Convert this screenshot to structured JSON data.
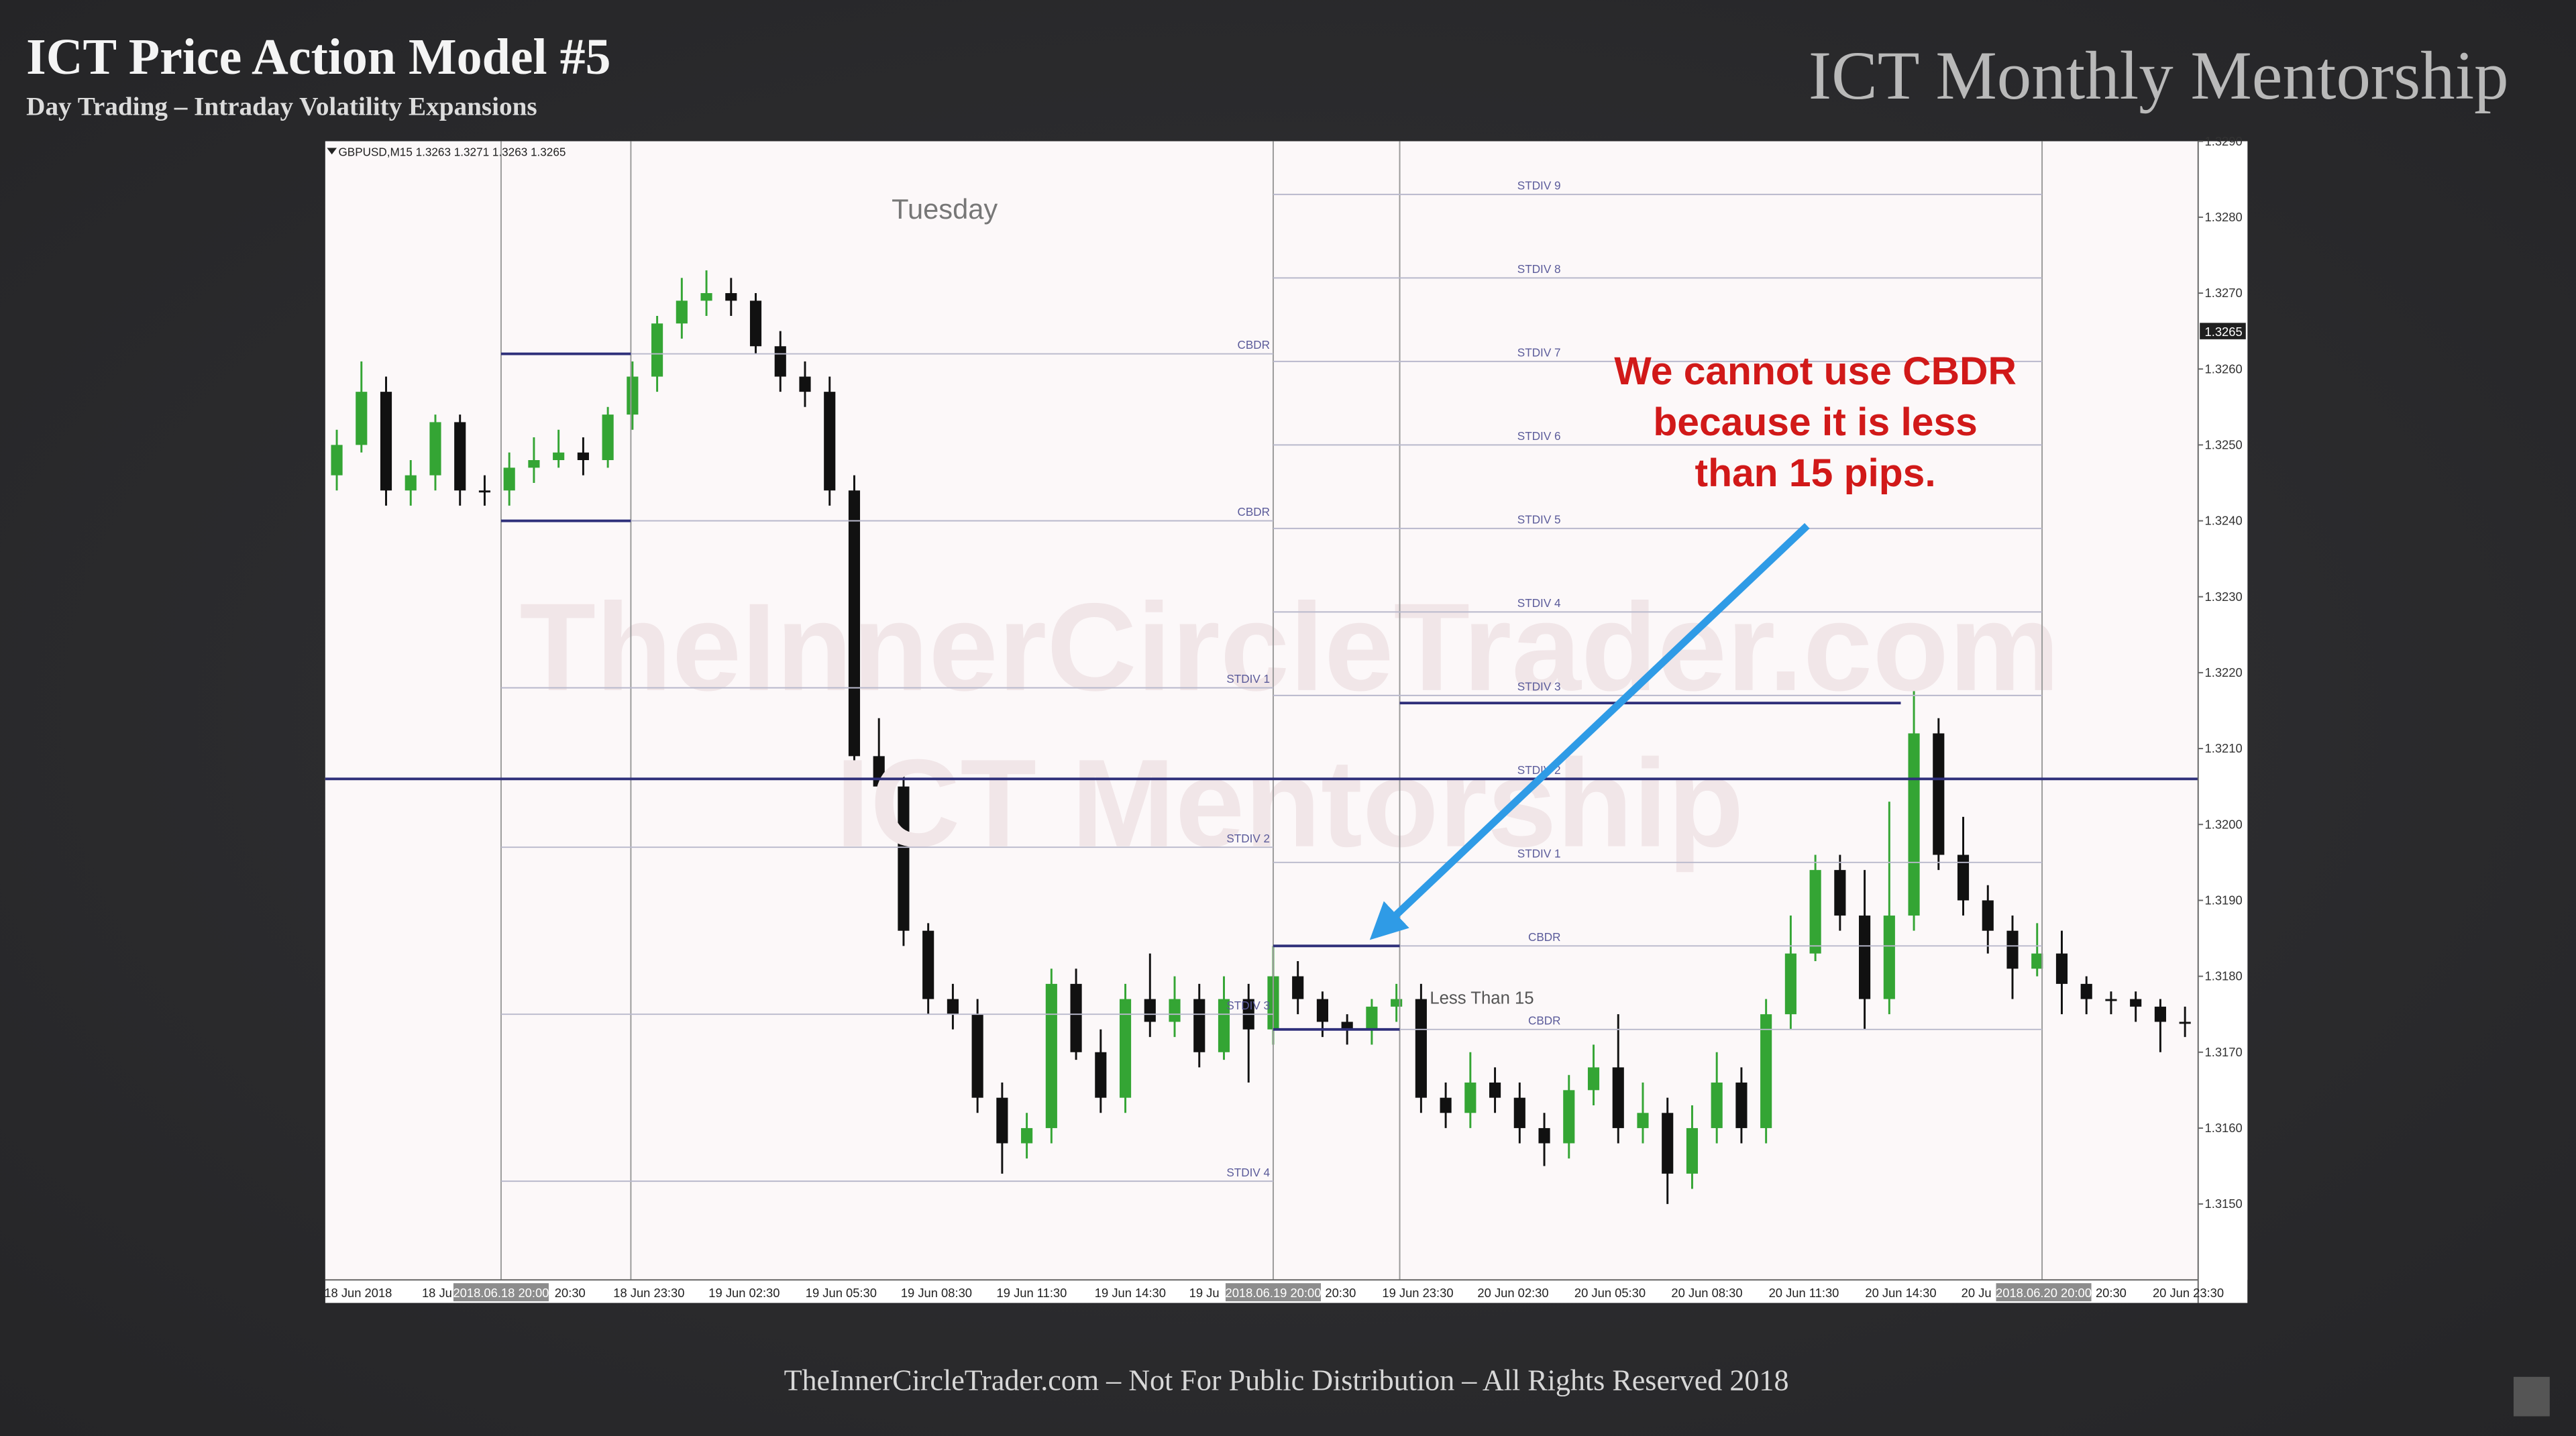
{
  "slide": {
    "title": "ICT Price Action Model #5",
    "subtitle": "Day Trading – Intraday Volatility Expansions",
    "brand": "ICT Monthly Mentorship",
    "footer": "TheInnerCircleTrader.com – Not For Public Distribution – All Rights Reserved 2018",
    "watermark": [
      "TheInnerCircleTrader.com",
      "ICT Mentorship"
    ]
  },
  "chart_data": {
    "type": "candlestick",
    "symbol_header": "GBPUSD,M15  1.3263 1.3271 1.3263 1.3265",
    "day_label": "Tuesday",
    "annotation": [
      "We cannot use CBDR",
      "because it is less",
      "than 15 pips."
    ],
    "range_note": "Less Than 15",
    "current_price": {
      "value": 1.3265,
      "label": "1.3265"
    },
    "colors": {
      "up": "#34a534",
      "down": "#111111",
      "level": "#2e2f7a",
      "std": "#b9b9cc",
      "annotation": "#d11919",
      "arrow": "#2f9be6"
    },
    "open": [
      1.3246,
      1.325,
      1.3257,
      1.3244,
      1.3246,
      1.3253,
      1.3244,
      1.3244,
      1.3247,
      1.3248,
      1.3249,
      1.3248,
      1.3254,
      1.3259,
      1.3266,
      1.3269,
      1.327,
      1.3269,
      1.3263,
      1.3259,
      1.3257,
      1.3244,
      1.3209,
      1.3205,
      1.3186,
      1.3177,
      1.3175,
      1.3164,
      1.3158,
      1.316,
      1.3179,
      1.317,
      1.3164,
      1.3177,
      1.3174,
      1.3177,
      1.317,
      1.3177,
      1.3173,
      1.318,
      1.3177,
      1.3174,
      1.3173,
      1.3176,
      1.3177,
      1.3164,
      1.3162,
      1.3166,
      1.3164,
      1.316,
      1.3158,
      1.3165,
      1.3168,
      1.316,
      1.3162,
      1.3154,
      1.316,
      1.3166,
      1.316,
      1.3175,
      1.3183,
      1.3194,
      1.3188,
      1.3177,
      1.3188,
      1.3212,
      1.3196,
      1.319,
      1.3186,
      1.3181,
      1.3183,
      1.3179,
      1.3177,
      1.3177,
      1.3176,
      1.3174
    ],
    "high": [
      1.3252,
      1.3261,
      1.3259,
      1.3248,
      1.3254,
      1.3254,
      1.3246,
      1.3249,
      1.3251,
      1.3252,
      1.3251,
      1.3255,
      1.3261,
      1.3267,
      1.3272,
      1.3273,
      1.3272,
      1.327,
      1.3265,
      1.3261,
      1.3259,
      1.3246,
      1.3214,
      1.3208,
      1.3187,
      1.3179,
      1.3177,
      1.3166,
      1.3162,
      1.3181,
      1.3181,
      1.3173,
      1.3179,
      1.3183,
      1.318,
      1.3179,
      1.318,
      1.3179,
      1.3184,
      1.3182,
      1.3178,
      1.3175,
      1.3177,
      1.3179,
      1.3179,
      1.3166,
      1.317,
      1.3168,
      1.3166,
      1.3162,
      1.3167,
      1.3171,
      1.3175,
      1.3166,
      1.3164,
      1.3163,
      1.317,
      1.3168,
      1.3177,
      1.3188,
      1.3196,
      1.3196,
      1.3194,
      1.3203,
      1.3218,
      1.3214,
      1.3201,
      1.3192,
      1.3188,
      1.3187,
      1.3186,
      1.318,
      1.3178,
      1.3178,
      1.3177,
      1.3176
    ],
    "low": [
      1.3244,
      1.3249,
      1.3242,
      1.3242,
      1.3244,
      1.3242,
      1.3242,
      1.3242,
      1.3245,
      1.3247,
      1.3246,
      1.3247,
      1.3252,
      1.3257,
      1.3264,
      1.3267,
      1.3267,
      1.3262,
      1.3257,
      1.3255,
      1.3242,
      1.3208,
      1.3203,
      1.3184,
      1.3175,
      1.3173,
      1.3162,
      1.3154,
      1.3156,
      1.3158,
      1.3169,
      1.3162,
      1.3162,
      1.3172,
      1.3172,
      1.3168,
      1.3169,
      1.3166,
      1.3171,
      1.3175,
      1.3172,
      1.3171,
      1.3171,
      1.3174,
      1.3162,
      1.316,
      1.316,
      1.3162,
      1.3158,
      1.3155,
      1.3156,
      1.3163,
      1.3158,
      1.3158,
      1.315,
      1.3152,
      1.3158,
      1.3158,
      1.3158,
      1.3173,
      1.3182,
      1.3186,
      1.3173,
      1.3175,
      1.3186,
      1.3194,
      1.3188,
      1.3183,
      1.3177,
      1.318,
      1.3175,
      1.3175,
      1.3175,
      1.3174,
      1.317,
      1.3172
    ],
    "close": [
      1.325,
      1.3257,
      1.3244,
      1.3246,
      1.3253,
      1.3244,
      1.3244,
      1.3247,
      1.3248,
      1.3249,
      1.3248,
      1.3254,
      1.3259,
      1.3266,
      1.3269,
      1.327,
      1.3269,
      1.3263,
      1.3259,
      1.3257,
      1.3244,
      1.3209,
      1.3205,
      1.3186,
      1.3177,
      1.3175,
      1.3164,
      1.3158,
      1.316,
      1.3179,
      1.317,
      1.3164,
      1.3177,
      1.3174,
      1.3177,
      1.317,
      1.3177,
      1.3173,
      1.318,
      1.3177,
      1.3174,
      1.3173,
      1.3176,
      1.3177,
      1.3164,
      1.3162,
      1.3166,
      1.3164,
      1.316,
      1.3158,
      1.3165,
      1.3168,
      1.316,
      1.3162,
      1.3154,
      1.316,
      1.3166,
      1.316,
      1.3175,
      1.3183,
      1.3194,
      1.3188,
      1.3177,
      1.3188,
      1.3212,
      1.3196,
      1.319,
      1.3186,
      1.3181,
      1.3183,
      1.3179,
      1.3177,
      1.3177,
      1.3176,
      1.3174,
      1.3174
    ],
    "x_labels": [
      "18 Jun 2018",
      "18 Ju",
      "2018.06.18 20:00",
      "20:30",
      "18 Jun 23:30",
      "19 Jun 02:30",
      "19 Jun 05:30",
      "19 Jun 08:30",
      "19 Jun 11:30",
      "19 Jun 14:30",
      "19 Ju",
      "2018.06.19 20:00",
      "20:30",
      "19 Jun 23:30",
      "20 Jun 02:30",
      "20 Jun 05:30",
      "20 Jun 08:30",
      "20 Jun 11:30",
      "20 Jun 14:30",
      "20 Ju",
      "2018.06.20 20:00",
      "20:30",
      "20 Jun 23:30"
    ],
    "ylim": [
      1.314,
      1.329
    ],
    "yticks": [
      {
        "value": 1.315,
        "label": "1.3150"
      },
      {
        "value": 1.316,
        "label": "1.3160"
      },
      {
        "value": 1.317,
        "label": "1.3170"
      },
      {
        "value": 1.318,
        "label": "1.3180"
      },
      {
        "value": 1.319,
        "label": "1.3190"
      },
      {
        "value": 1.32,
        "label": "1.3200"
      },
      {
        "value": 1.321,
        "label": "1.3210"
      },
      {
        "value": 1.322,
        "label": "1.3220"
      },
      {
        "value": 1.323,
        "label": "1.3230"
      },
      {
        "value": 1.324,
        "label": "1.3240"
      },
      {
        "value": 1.325,
        "label": "1.3250"
      },
      {
        "value": 1.326,
        "label": "1.3260"
      },
      {
        "value": 1.327,
        "label": "1.3270"
      },
      {
        "value": 1.328,
        "label": "1.3280"
      },
      {
        "value": 1.329,
        "label": "1.3290"
      }
    ],
    "day1_levels": [
      {
        "label": "CBDR",
        "value": 1.3262
      },
      {
        "label": "CBDR",
        "value": 1.324
      },
      {
        "label": "STDIV 1",
        "value": 1.3218
      },
      {
        "label": "STDIV 2",
        "value": 1.3197
      },
      {
        "label": "STDIV 3",
        "value": 1.3175
      },
      {
        "label": "STDIV 4",
        "value": 1.3153
      }
    ],
    "day2_levels": [
      {
        "label": "STDIV 9",
        "value": 1.3283
      },
      {
        "label": "STDIV 8",
        "value": 1.3272
      },
      {
        "label": "STDIV 7",
        "value": 1.3261
      },
      {
        "label": "STDIV 6",
        "value": 1.325
      },
      {
        "label": "STDIV 5",
        "value": 1.3239
      },
      {
        "label": "STDIV 4",
        "value": 1.3228
      },
      {
        "label": "STDIV 3",
        "value": 1.3217
      },
      {
        "label": "STDIV 2",
        "value": 1.3206
      },
      {
        "label": "STDIV 1",
        "value": 1.3195
      },
      {
        "label": "CBDR",
        "value": 1.3184
      },
      {
        "label": "CBDR",
        "value": 1.3173
      }
    ],
    "key_levels": [
      1.3206,
      1.3216
    ]
  }
}
